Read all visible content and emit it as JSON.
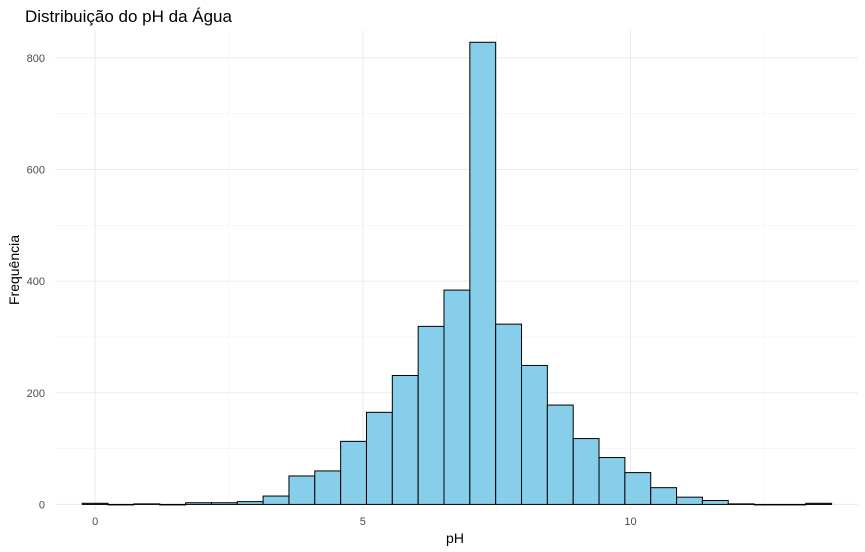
{
  "chart_data": {
    "type": "bar",
    "title": "Distribuição do pH da Água",
    "xlabel": "pH",
    "ylabel": "Frequência",
    "xlim": [
      -0.75,
      14.25
    ],
    "ylim": [
      -10,
      850
    ],
    "xticks": [
      0,
      5,
      10
    ],
    "xtick_labels": [
      "0",
      "5",
      "10"
    ],
    "yticks": [
      0,
      200,
      400,
      600,
      800
    ],
    "ytick_labels": [
      "0",
      "200",
      "400",
      "600",
      "800"
    ],
    "grid": true,
    "fill_color": "#87ceeb",
    "edge_color": "#000000",
    "bin_width": 0.4827,
    "bin_start": -0.2414,
    "values": [
      2,
      0,
      1,
      0,
      3,
      3,
      5,
      15,
      51,
      60,
      113,
      165,
      231,
      319,
      384,
      828,
      323,
      249,
      178,
      118,
      84,
      57,
      30,
      13,
      7,
      1,
      0,
      0,
      2
    ]
  }
}
